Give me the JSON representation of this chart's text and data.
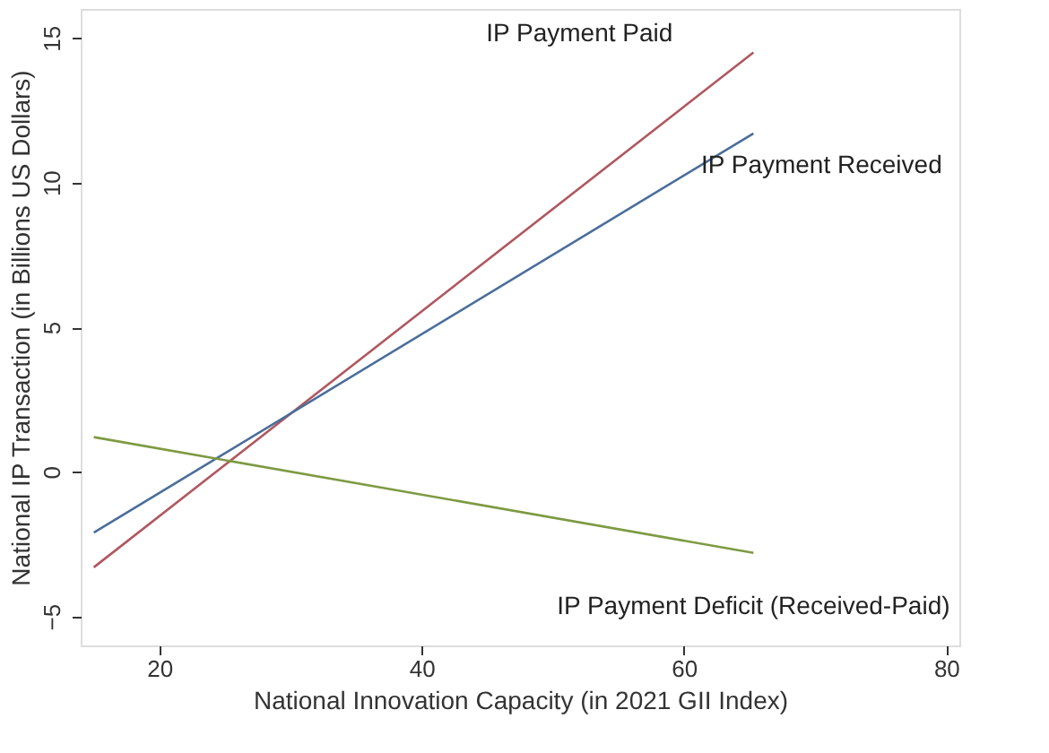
{
  "chart_data": {
    "type": "line",
    "xlabel": "National Innovation Capacity (in 2021 GII Index)",
    "ylabel": "National IP Transaction (in Billions US Dollars)",
    "xlim": [
      14,
      81
    ],
    "xticks": [
      20,
      40,
      60,
      80
    ],
    "ylim": [
      -6,
      16
    ],
    "yticks": [
      -5,
      0,
      5,
      10,
      15
    ],
    "grid": false,
    "marker": "none",
    "line_style": "solid",
    "x": [
      15,
      65.3
    ],
    "series": [
      {
        "name": "IP Payment Paid",
        "color": "#b0575f",
        "values": [
          -3.3,
          14.5
        ]
      },
      {
        "name": "IP Payment Received",
        "color": "#4a6e9c",
        "values": [
          -2.1,
          11.7
        ]
      },
      {
        "name": "IP Payment Deficit (Received-Paid)",
        "color": "#7d9a42",
        "values": [
          1.2,
          -2.8
        ]
      }
    ]
  }
}
